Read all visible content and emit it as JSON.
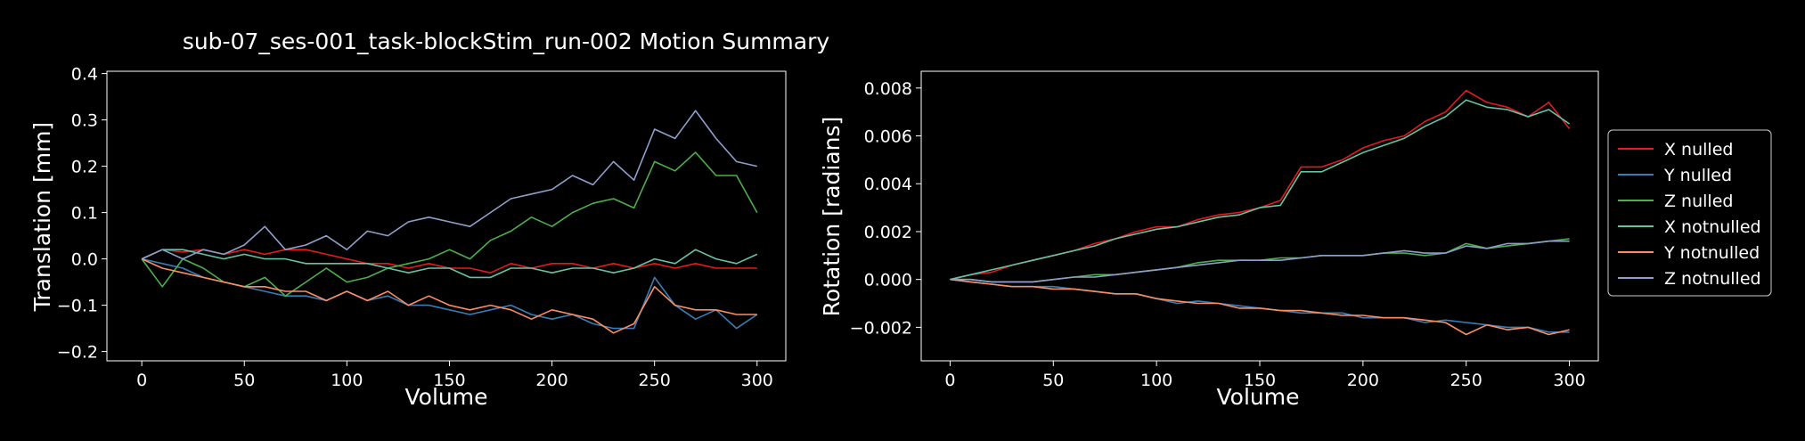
{
  "title": "sub-07_ses-001_task-blockStim_run-002 Motion Summary",
  "colors": {
    "background": "#000000",
    "foreground": "#ffffff",
    "x": "#e41a1c",
    "y": "#377eb8",
    "z": "#4daf4a",
    "x_notnulled": "#66c2a5",
    "y_notnulled": "#fc8d62",
    "z_notnulled": "#8da0cb"
  },
  "chart_data": [
    {
      "type": "line",
      "title": "",
      "xlabel": "Volume",
      "ylabel": "Translation [mm]",
      "xlim": [
        -17,
        314
      ],
      "ylim": [
        -0.22,
        0.405
      ],
      "xticks": [
        0,
        50,
        100,
        150,
        200,
        250,
        300
      ],
      "yticks": [
        -0.2,
        -0.1,
        0.0,
        0.1,
        0.2,
        0.3,
        0.4
      ],
      "ytick_labels": [
        "−0.2",
        "−0.1",
        "0.0",
        "0.1",
        "0.2",
        "0.3",
        "0.4"
      ],
      "grid": false,
      "series": [
        {
          "name": "X nulled",
          "color": "#e41a1c",
          "x": [
            0,
            10,
            20,
            30,
            40,
            50,
            60,
            70,
            80,
            90,
            100,
            110,
            120,
            130,
            140,
            150,
            160,
            170,
            180,
            190,
            200,
            210,
            220,
            230,
            240,
            250,
            260,
            270,
            280,
            290,
            300
          ],
          "y": [
            0.0,
            0.02,
            0.015,
            0.02,
            0.01,
            0.02,
            0.01,
            0.02,
            0.02,
            0.01,
            0.0,
            -0.01,
            -0.01,
            -0.02,
            -0.01,
            -0.02,
            -0.02,
            -0.03,
            -0.01,
            -0.02,
            -0.01,
            -0.01,
            -0.02,
            -0.01,
            -0.02,
            -0.01,
            -0.02,
            -0.01,
            -0.02,
            -0.02,
            -0.02
          ]
        },
        {
          "name": "Y nulled",
          "color": "#377eb8",
          "x": [
            0,
            10,
            20,
            30,
            40,
            50,
            60,
            70,
            80,
            90,
            100,
            110,
            120,
            130,
            140,
            150,
            160,
            170,
            180,
            190,
            200,
            210,
            220,
            230,
            240,
            250,
            260,
            270,
            280,
            290,
            300
          ],
          "y": [
            0.0,
            -0.01,
            -0.02,
            -0.04,
            -0.05,
            -0.06,
            -0.07,
            -0.08,
            -0.08,
            -0.09,
            -0.07,
            -0.09,
            -0.08,
            -0.1,
            -0.1,
            -0.11,
            -0.12,
            -0.11,
            -0.1,
            -0.12,
            -0.13,
            -0.12,
            -0.14,
            -0.15,
            -0.15,
            -0.04,
            -0.1,
            -0.13,
            -0.11,
            -0.15,
            -0.12
          ]
        },
        {
          "name": "Z nulled",
          "color": "#4daf4a",
          "x": [
            0,
            10,
            20,
            30,
            40,
            50,
            60,
            70,
            80,
            90,
            100,
            110,
            120,
            130,
            140,
            150,
            160,
            170,
            180,
            190,
            200,
            210,
            220,
            230,
            240,
            250,
            260,
            270,
            280,
            290,
            300
          ],
          "y": [
            0.0,
            -0.06,
            0.0,
            -0.02,
            -0.05,
            -0.06,
            -0.04,
            -0.08,
            -0.05,
            -0.02,
            -0.05,
            -0.04,
            -0.02,
            -0.01,
            0.0,
            0.02,
            0.0,
            0.04,
            0.06,
            0.09,
            0.07,
            0.1,
            0.12,
            0.13,
            0.11,
            0.21,
            0.19,
            0.23,
            0.18,
            0.18,
            0.1
          ]
        },
        {
          "name": "X notnulled",
          "color": "#66c2a5",
          "x": [
            0,
            10,
            20,
            30,
            40,
            50,
            60,
            70,
            80,
            90,
            100,
            110,
            120,
            130,
            140,
            150,
            160,
            170,
            180,
            190,
            200,
            210,
            220,
            230,
            240,
            250,
            260,
            270,
            280,
            290,
            300
          ],
          "y": [
            0.0,
            0.02,
            0.02,
            0.01,
            0.0,
            0.01,
            0.0,
            0.0,
            -0.01,
            -0.01,
            -0.01,
            -0.01,
            -0.02,
            -0.03,
            -0.02,
            -0.02,
            -0.04,
            -0.04,
            -0.02,
            -0.02,
            -0.03,
            -0.02,
            -0.02,
            -0.03,
            -0.02,
            0.0,
            -0.01,
            0.02,
            0.0,
            -0.01,
            0.01
          ]
        },
        {
          "name": "Y notnulled",
          "color": "#fc8d62",
          "x": [
            0,
            10,
            20,
            30,
            40,
            50,
            60,
            70,
            80,
            90,
            100,
            110,
            120,
            130,
            140,
            150,
            160,
            170,
            180,
            190,
            200,
            210,
            220,
            230,
            240,
            250,
            260,
            270,
            280,
            290,
            300
          ],
          "y": [
            0.0,
            -0.02,
            -0.03,
            -0.04,
            -0.05,
            -0.06,
            -0.06,
            -0.07,
            -0.07,
            -0.09,
            -0.07,
            -0.09,
            -0.07,
            -0.1,
            -0.08,
            -0.1,
            -0.11,
            -0.1,
            -0.11,
            -0.13,
            -0.11,
            -0.12,
            -0.13,
            -0.16,
            -0.14,
            -0.06,
            -0.1,
            -0.11,
            -0.11,
            -0.12,
            -0.12
          ]
        },
        {
          "name": "Z notnulled",
          "color": "#8da0cb",
          "x": [
            0,
            10,
            20,
            30,
            40,
            50,
            60,
            70,
            80,
            90,
            100,
            110,
            120,
            130,
            140,
            150,
            160,
            170,
            180,
            190,
            200,
            210,
            220,
            230,
            240,
            250,
            260,
            270,
            280,
            290,
            300
          ],
          "y": [
            0.0,
            0.02,
            0.0,
            0.02,
            0.01,
            0.03,
            0.07,
            0.02,
            0.03,
            0.05,
            0.02,
            0.06,
            0.05,
            0.08,
            0.09,
            0.08,
            0.07,
            0.1,
            0.13,
            0.14,
            0.15,
            0.18,
            0.16,
            0.21,
            0.17,
            0.28,
            0.26,
            0.32,
            0.26,
            0.21,
            0.2
          ]
        }
      ]
    },
    {
      "type": "line",
      "title": "",
      "xlabel": "Volume",
      "ylabel": "Rotation [radians]",
      "xlim": [
        -14,
        314
      ],
      "ylim": [
        -0.0034,
        0.0087
      ],
      "xticks": [
        0,
        50,
        100,
        150,
        200,
        250,
        300
      ],
      "yticks": [
        -0.002,
        0.0,
        0.002,
        0.004,
        0.006,
        0.008
      ],
      "ytick_labels": [
        "−0.002",
        "0.000",
        "0.002",
        "0.004",
        "0.006",
        "0.008"
      ],
      "grid": false,
      "legend_position": "outside-right",
      "series": [
        {
          "name": "X nulled",
          "color": "#e41a1c",
          "x": [
            0,
            10,
            20,
            30,
            40,
            50,
            60,
            70,
            80,
            90,
            100,
            110,
            120,
            130,
            140,
            150,
            160,
            170,
            180,
            190,
            200,
            210,
            220,
            230,
            240,
            250,
            260,
            270,
            280,
            290,
            300
          ],
          "y": [
            0.0,
            0.0002,
            0.0003,
            0.0006,
            0.0008,
            0.001,
            0.0012,
            0.0015,
            0.0017,
            0.002,
            0.0022,
            0.0022,
            0.0025,
            0.0027,
            0.0028,
            0.003,
            0.0033,
            0.0047,
            0.0047,
            0.005,
            0.0055,
            0.0058,
            0.006,
            0.0066,
            0.007,
            0.0079,
            0.0074,
            0.0072,
            0.0068,
            0.0074,
            0.0063
          ]
        },
        {
          "name": "Y nulled",
          "color": "#377eb8",
          "x": [
            0,
            10,
            20,
            30,
            40,
            50,
            60,
            70,
            80,
            90,
            100,
            110,
            120,
            130,
            140,
            150,
            160,
            170,
            180,
            190,
            200,
            210,
            220,
            230,
            240,
            250,
            260,
            270,
            280,
            290,
            300
          ],
          "y": [
            0.0,
            -0.0001,
            -0.0002,
            -0.0003,
            -0.0003,
            -0.0003,
            -0.0004,
            -0.0005,
            -0.0006,
            -0.0006,
            -0.0008,
            -0.001,
            -0.0009,
            -0.001,
            -0.0011,
            -0.0012,
            -0.0013,
            -0.0014,
            -0.0014,
            -0.0014,
            -0.0016,
            -0.0016,
            -0.0016,
            -0.0018,
            -0.0017,
            -0.0018,
            -0.0019,
            -0.002,
            -0.002,
            -0.0022,
            -0.0022
          ]
        },
        {
          "name": "Z nulled",
          "color": "#4daf4a",
          "x": [
            0,
            10,
            20,
            30,
            40,
            50,
            60,
            70,
            80,
            90,
            100,
            110,
            120,
            130,
            140,
            150,
            160,
            170,
            180,
            190,
            200,
            210,
            220,
            230,
            240,
            250,
            260,
            270,
            280,
            290,
            300
          ],
          "y": [
            0.0,
            0.0,
            -0.0001,
            -0.0001,
            -0.0001,
            0.0,
            0.0001,
            0.0002,
            0.0002,
            0.0003,
            0.0004,
            0.0005,
            0.0007,
            0.0008,
            0.0008,
            0.0008,
            0.0009,
            0.0009,
            0.001,
            0.001,
            0.001,
            0.0011,
            0.0011,
            0.001,
            0.0011,
            0.0015,
            0.0013,
            0.0014,
            0.0015,
            0.0016,
            0.0017
          ]
        },
        {
          "name": "X notnulled",
          "color": "#66c2a5",
          "x": [
            0,
            10,
            20,
            30,
            40,
            50,
            60,
            70,
            80,
            90,
            100,
            110,
            120,
            130,
            140,
            150,
            160,
            170,
            180,
            190,
            200,
            210,
            220,
            230,
            240,
            250,
            260,
            270,
            280,
            290,
            300
          ],
          "y": [
            0.0,
            0.0002,
            0.0004,
            0.0006,
            0.0008,
            0.001,
            0.0012,
            0.0014,
            0.0017,
            0.0019,
            0.0021,
            0.0022,
            0.0024,
            0.0026,
            0.0027,
            0.003,
            0.0031,
            0.0045,
            0.0045,
            0.0049,
            0.0053,
            0.0056,
            0.0059,
            0.0064,
            0.0068,
            0.0075,
            0.0072,
            0.0071,
            0.0068,
            0.0071,
            0.0065
          ]
        },
        {
          "name": "Y notnulled",
          "color": "#fc8d62",
          "x": [
            0,
            10,
            20,
            30,
            40,
            50,
            60,
            70,
            80,
            90,
            100,
            110,
            120,
            130,
            140,
            150,
            160,
            170,
            180,
            190,
            200,
            210,
            220,
            230,
            240,
            250,
            260,
            270,
            280,
            290,
            300
          ],
          "y": [
            0.0,
            -0.0001,
            -0.0002,
            -0.0003,
            -0.0003,
            -0.0004,
            -0.0004,
            -0.0005,
            -0.0006,
            -0.0006,
            -0.0008,
            -0.0009,
            -0.001,
            -0.001,
            -0.0012,
            -0.0012,
            -0.0013,
            -0.0013,
            -0.0014,
            -0.0015,
            -0.0015,
            -0.0016,
            -0.0016,
            -0.0017,
            -0.0018,
            -0.0023,
            -0.0019,
            -0.0021,
            -0.002,
            -0.0023,
            -0.0021
          ]
        },
        {
          "name": "Z notnulled",
          "color": "#8da0cb",
          "x": [
            0,
            10,
            20,
            30,
            40,
            50,
            60,
            70,
            80,
            90,
            100,
            110,
            120,
            130,
            140,
            150,
            160,
            170,
            180,
            190,
            200,
            210,
            220,
            230,
            240,
            250,
            260,
            270,
            280,
            290,
            300
          ],
          "y": [
            0.0,
            0.0,
            -0.0001,
            -0.0001,
            -0.0001,
            0.0,
            0.0001,
            0.0001,
            0.0002,
            0.0003,
            0.0004,
            0.0005,
            0.0006,
            0.0007,
            0.0008,
            0.0008,
            0.0008,
            0.0009,
            0.001,
            0.001,
            0.001,
            0.0011,
            0.0012,
            0.0011,
            0.0011,
            0.0014,
            0.0013,
            0.0015,
            0.0015,
            0.0016,
            0.0016
          ]
        }
      ]
    }
  ]
}
